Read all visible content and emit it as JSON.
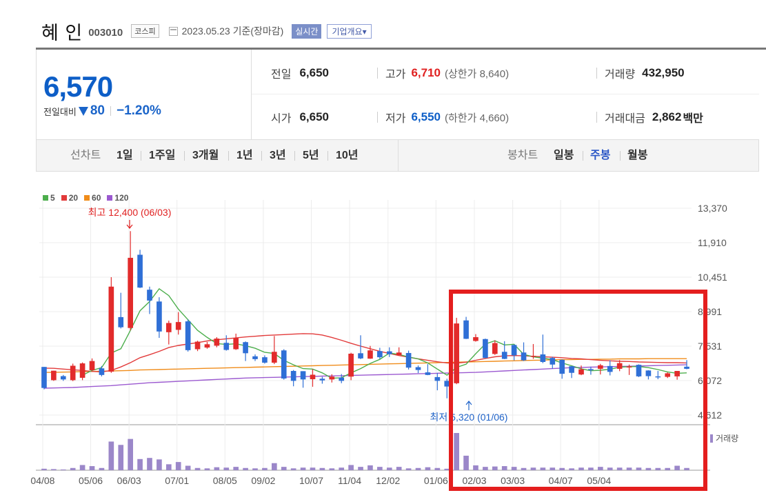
{
  "header": {
    "name": "혜 인",
    "code": "003010",
    "market": "코스피",
    "date": "2023.05.23 기준(장마감)",
    "realtime_label": "실시간",
    "company_info_label": "기업개요▾"
  },
  "summary": {
    "price": "6,570",
    "change_label": "전일대비",
    "change": "80",
    "change_pct": "−1.20%",
    "prev_close_label": "전일",
    "prev_close": "6,650",
    "open_label": "시가",
    "open": "6,650",
    "high_label": "고가",
    "high": "6,710",
    "upper_limit": "(상한가 8,640)",
    "low_label": "저가",
    "low": "6,550",
    "lower_limit": "(하한가 4,660)",
    "volume_label": "거래량",
    "volume": "432,950",
    "turnover_label": "거래대금",
    "turnover": "2,862",
    "turnover_unit": "백만",
    "colors": {
      "up": "#e02020",
      "down": "#0d5ec7"
    }
  },
  "tabs": {
    "line_label": "선차트",
    "line_ranges": [
      "1일",
      "1주일",
      "3개월",
      "1년",
      "3년",
      "5년",
      "10년"
    ],
    "candle_label": "봉차트",
    "candle_ranges": [
      "일봉",
      "주봉",
      "월봉"
    ],
    "selected_candle": "주봉"
  },
  "legend": [
    {
      "name": "5",
      "color": "#4cae4c"
    },
    {
      "name": "20",
      "color": "#e23a3a"
    },
    {
      "name": "60",
      "color": "#f08c1a"
    },
    {
      "name": "120",
      "color": "#9b59d0"
    }
  ],
  "annotations": {
    "high": "최고 12,400 (06/03)",
    "low": "최저 5,320 (01/06)"
  },
  "volume_label": "거래량",
  "chart_data": {
    "type": "candlestick",
    "interval": "weekly",
    "y_ticks": [
      "13,370",
      "11,910",
      "10,451",
      "8,991",
      "7,531",
      "6,072",
      "4,612"
    ],
    "x_ticks": [
      "04/08",
      "05/06",
      "06/03",
      "07/01",
      "08/05",
      "09/02",
      "10/07",
      "11/04",
      "12/02",
      "01/06",
      "02/03",
      "03/03",
      "04/07",
      "05/04"
    ],
    "ylim": [
      4300,
      13600
    ],
    "candles": [
      [
        6650,
        5760,
        6650,
        5700
      ],
      [
        6090,
        6490,
        6490,
        6060
      ],
      [
        6260,
        6120,
        6310,
        6060
      ],
      [
        6090,
        6700,
        6790,
        6050
      ],
      [
        6190,
        6800,
        6840,
        6090
      ],
      [
        6510,
        6900,
        7010,
        6490
      ],
      [
        6590,
        6310,
        6690,
        6250
      ],
      [
        6450,
        10050,
        10450,
        6400
      ],
      [
        8760,
        8330,
        9790,
        8280
      ],
      [
        8300,
        11270,
        12400,
        8200
      ],
      [
        11400,
        10010,
        11610,
        9990
      ],
      [
        9920,
        9460,
        10050,
        8890
      ],
      [
        9420,
        8150,
        9600,
        7880
      ],
      [
        8120,
        8510,
        8610,
        7600
      ],
      [
        8220,
        8550,
        8970,
        8020
      ],
      [
        8580,
        7360,
        8660,
        7300
      ],
      [
        7400,
        7720,
        7760,
        7320
      ],
      [
        7470,
        7610,
        7710,
        7420
      ],
      [
        7550,
        7850,
        7910,
        7480
      ],
      [
        7670,
        7370,
        7990,
        7340
      ],
      [
        7400,
        7870,
        8060,
        7370
      ],
      [
        7700,
        7230,
        7730,
        6900
      ],
      [
        7100,
        6980,
        7180,
        6900
      ],
      [
        7060,
        6830,
        7140,
        6790
      ],
      [
        6830,
        7290,
        7960,
        6770
      ],
      [
        7350,
        6160,
        7400,
        6110
      ],
      [
        6480,
        6060,
        6520,
        5830
      ],
      [
        6470,
        6120,
        6470,
        5770
      ],
      [
        6130,
        6320,
        6560,
        5810
      ],
      [
        6150,
        6080,
        6230,
        5940
      ],
      [
        6120,
        6240,
        6340,
        5990
      ],
      [
        6200,
        6060,
        6350,
        5960
      ],
      [
        6240,
        7210,
        7250,
        6090
      ],
      [
        7230,
        7010,
        7990,
        6980
      ],
      [
        7000,
        7350,
        7540,
        6990
      ],
      [
        7320,
        7060,
        7460,
        6990
      ],
      [
        7310,
        7190,
        7480,
        7070
      ],
      [
        7150,
        7260,
        7480,
        7140
      ],
      [
        7240,
        6620,
        7340,
        6540
      ],
      [
        6640,
        6520,
        6710,
        6390
      ],
      [
        6420,
        6310,
        6770,
        6300
      ],
      [
        6220,
        6060,
        6400,
        5660
      ],
      [
        6060,
        5820,
        6150,
        5320
      ],
      [
        5960,
        8490,
        8730,
        5920
      ],
      [
        8620,
        7840,
        8770,
        7830
      ],
      [
        7750,
        7910,
        8040,
        7720
      ],
      [
        7830,
        7030,
        7850,
        7020
      ],
      [
        7200,
        7660,
        7780,
        7160
      ],
      [
        7290,
        6990,
        7740,
        6980
      ],
      [
        7580,
        7140,
        7600,
        6930
      ],
      [
        7260,
        6930,
        7690,
        6900
      ],
      [
        7080,
        7120,
        7620,
        6990
      ],
      [
        7180,
        6860,
        8020,
        6810
      ],
      [
        7030,
        6750,
        7080,
        6570
      ],
      [
        6950,
        6360,
        6970,
        6150
      ],
      [
        6680,
        6400,
        6690,
        6180
      ],
      [
        6330,
        6550,
        6710,
        6300
      ],
      [
        6560,
        6520,
        6660,
        6320
      ],
      [
        6570,
        6720,
        6780,
        6330
      ],
      [
        6690,
        6440,
        6930,
        6290
      ],
      [
        6570,
        6810,
        6940,
        6470
      ],
      [
        6640,
        6670,
        6750,
        6310
      ],
      [
        6740,
        6250,
        6760,
        6220
      ],
      [
        6500,
        6260,
        6510,
        6120
      ],
      [
        6250,
        6230,
        6480,
        6130
      ],
      [
        6230,
        6380,
        6420,
        6180
      ],
      [
        6250,
        6480,
        6480,
        6110
      ],
      [
        6660,
        6570,
        6940,
        6550
      ]
    ],
    "volume": [
      4,
      3,
      2,
      6,
      14,
      11,
      6,
      77,
      68,
      84,
      30,
      33,
      29,
      16,
      22,
      12,
      6,
      5,
      8,
      7,
      9,
      6,
      5,
      6,
      19,
      9,
      5,
      7,
      7,
      6,
      5,
      7,
      14,
      9,
      13,
      9,
      7,
      9,
      5,
      6,
      8,
      6,
      4,
      100,
      39,
      13,
      9,
      10,
      11,
      9,
      6,
      7,
      7,
      7,
      6,
      5,
      7,
      7,
      9,
      7,
      7,
      7,
      7,
      6,
      6,
      6,
      12,
      6
    ],
    "moving_averages": {
      "5": [
        null,
        null,
        null,
        null,
        6300,
        6500,
        6620,
        7240,
        7420,
        8200,
        9030,
        9420,
        9960,
        9670,
        9100,
        8650,
        8200,
        7900,
        7640,
        7600,
        7630,
        7550,
        7440,
        7270,
        7220,
        6930,
        6740,
        6580,
        6560,
        6400,
        6170,
        6190,
        6400,
        6580,
        6800,
        6970,
        7240,
        7180,
        7070,
        6990,
        6820,
        6560,
        6300,
        6630,
        6770,
        7210,
        7620,
        7760,
        7580,
        7610,
        7180,
        7080,
        7020,
        6960,
        6820,
        6700,
        6570,
        6490,
        6510,
        6550,
        6640,
        6660,
        6670,
        6620,
        6540,
        6440,
        6380,
        6400
      ],
      "20": [
        6600,
        6590,
        6560,
        6530,
        6500,
        6460,
        6440,
        6500,
        6650,
        6830,
        7040,
        7170,
        7310,
        7470,
        7560,
        7620,
        7680,
        7750,
        7800,
        7840,
        7880,
        7920,
        7950,
        7980,
        8000,
        8020,
        8040,
        8060,
        8050,
        8000,
        7900,
        7780,
        7650,
        7530,
        7420,
        7310,
        7220,
        7130,
        7060,
        6990,
        6930,
        6870,
        6820,
        6810,
        6850,
        6930,
        7010,
        7080,
        7120,
        7130,
        7120,
        7100,
        7080,
        7060,
        7040,
        7010,
        6990,
        6960,
        6930,
        6910,
        6890,
        6880,
        6860,
        6850,
        6840,
        6830,
        6830,
        6820
      ],
      "60": [
        6420,
        6420,
        6430,
        6440,
        6450,
        6460,
        6470,
        6480,
        6490,
        6500,
        6520,
        6530,
        6540,
        6550,
        6560,
        6570,
        6580,
        6590,
        6600,
        6610,
        6620,
        6630,
        6640,
        6650,
        6660,
        6670,
        6680,
        6690,
        6700,
        6710,
        6720,
        6730,
        6740,
        6750,
        6760,
        6770,
        6780,
        6790,
        6800,
        6810,
        6820,
        6830,
        6840,
        6850,
        6860,
        6870,
        6880,
        6890,
        6900,
        6910,
        6920,
        6930,
        6940,
        6950,
        6960,
        6960,
        6970,
        6970,
        6980,
        6980,
        6990,
        6990,
        6990,
        7000,
        7000,
        7000,
        7000,
        7000
      ],
      "120": [
        5750,
        5760,
        5770,
        5780,
        5800,
        5820,
        5840,
        5860,
        5890,
        5920,
        5950,
        5980,
        6000,
        6020,
        6040,
        6060,
        6080,
        6100,
        6120,
        6140,
        6160,
        6180,
        6190,
        6200,
        6210,
        6220,
        6230,
        6240,
        6250,
        6260,
        6270,
        6280,
        6290,
        6300,
        6310,
        6320,
        6330,
        6340,
        6350,
        6360,
        6370,
        6380,
        6390,
        6400,
        6410,
        6420,
        6440,
        6460,
        6480,
        6500,
        6520,
        6540,
        6560,
        6580,
        6600,
        6620,
        6630,
        6640,
        6650,
        6660,
        6670,
        6680,
        6690,
        6700,
        6710,
        6720,
        6730,
        6740
      ]
    }
  }
}
